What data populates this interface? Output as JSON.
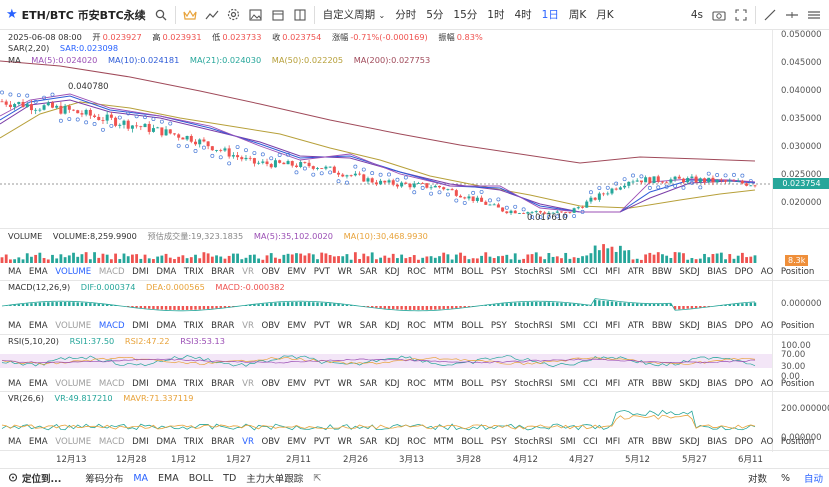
{
  "toolbar": {
    "symbol": "ETH/BTC 币安BTC永续",
    "custom_period": "自定义周期",
    "intervals": [
      "分时",
      "5分",
      "15分",
      "1时",
      "4时",
      "1日",
      "周K",
      "月K"
    ],
    "active_interval": "1日",
    "refresh": "4s"
  },
  "legend": {
    "date": "2025-06-08 08:00",
    "open_label": "开",
    "open": "0.023927",
    "high_label": "高",
    "high": "0.023931",
    "low_label": "低",
    "low": "0.023733",
    "close_label": "收",
    "close": "0.023754",
    "change_label": "涨幅",
    "change": "-0.71%(-0.000169)",
    "amp_label": "振幅",
    "amp": "0.83%",
    "sar_name": "SAR(2,20)",
    "sar_val": "SAR:0.023098",
    "ma_name": "MA",
    "ma5": "MA(5):0.024020",
    "ma10": "MA(10):0.024181",
    "ma21": "MA(21):0.024030",
    "ma50": "MA(50):0.022205",
    "ma200": "MA(200):0.027753"
  },
  "main_annotations": {
    "high_label": "0.040780",
    "low_label": "0.017610"
  },
  "price_axis": [
    "0.050000",
    "0.045000",
    "0.040000",
    "0.035000",
    "0.030000",
    "0.025000",
    "0.020000"
  ],
  "current_price": "0.023754",
  "volume": {
    "name": "VOLUME",
    "vol": "VOLUME:8,259.9900",
    "predict": "预估成交量:19,323.1835",
    "ma5": "MA(5):35,102.0020",
    "ma10": "MA(10):30,468.9930",
    "tag": "8.3k"
  },
  "macd": {
    "name": "MACD(12,26,9)",
    "dif": "DIF:0.000374",
    "dea": "DEA:0.000565",
    "macd": "MACD:-0.000382",
    "axis": "0.000000"
  },
  "rsi": {
    "name": "RSI(5,10,20)",
    "rsi1": "RSI1:37.50",
    "rsi2": "RSI2:47.22",
    "rsi3": "RSI3:53.13",
    "axis": [
      "100.00",
      "70.00",
      "30.00",
      "0.00"
    ]
  },
  "vr": {
    "name": "VR(26,6)",
    "vr": "VR:49.817210",
    "mavr": "MAVR:71.337119",
    "axis": [
      "200.000000",
      "0.000000"
    ]
  },
  "indicator_list": [
    "MA",
    "EMA",
    "VOLUME",
    "MACD",
    "DMI",
    "DMA",
    "TRIX",
    "BRAR",
    "VR",
    "OBV",
    "EMV",
    "PVT",
    "WR",
    "SAR",
    "KDJ",
    "ROC",
    "MTM",
    "BOLL",
    "PSY",
    "StochRSI",
    "SMI",
    "CCI",
    "MFI",
    "ATR",
    "BBW",
    "SKDJ",
    "BIAS",
    "DPO",
    "AO",
    "Position"
  ],
  "xaxis": [
    "12月13",
    "12月28",
    "1月12",
    "1月27",
    "2月11",
    "2月26",
    "3月13",
    "3月28",
    "4月12",
    "4月27",
    "5月12",
    "5月27",
    "6月11"
  ],
  "bottom": {
    "locate": "定位到...",
    "items": [
      "筹码分布",
      "MA",
      "EMA",
      "BOLL",
      "TD",
      "主力大单跟踪"
    ],
    "right": [
      "对数",
      "%",
      "自动"
    ]
  },
  "colors": {
    "up": "#26a69a",
    "down": "#ef5350",
    "accent": "#2962ff"
  },
  "chart_data": {
    "type": "line",
    "title": "ETH/BTC 币安BTC永续 1日",
    "x": [
      "12月13",
      "12月28",
      "1月12",
      "1月27",
      "2月11",
      "2月26",
      "3月13",
      "3月28",
      "4月12",
      "4月27",
      "5月12",
      "5月27",
      "6月08"
    ],
    "series": [
      {
        "name": "Close",
        "values": [
          0.0385,
          0.037,
          0.0345,
          0.032,
          0.0275,
          0.027,
          0.024,
          0.0232,
          0.019,
          0.0185,
          0.0245,
          0.0245,
          0.023754
        ]
      },
      {
        "name": "MA(200)",
        "values": [
          0.045,
          0.044,
          0.0425,
          0.041,
          0.0395,
          0.0375,
          0.0355,
          0.0335,
          0.0315,
          0.03,
          0.029,
          0.0283,
          0.027753
        ]
      }
    ],
    "ylim": [
      0.017,
      0.052
    ]
  }
}
